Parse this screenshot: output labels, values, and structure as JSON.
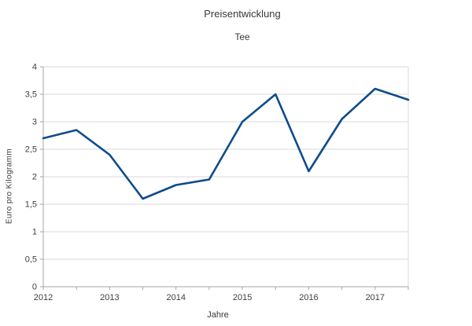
{
  "chart_data": {
    "type": "line",
    "title": "Preisentwicklung",
    "subtitle": "Tee",
    "xlabel": "Jahre",
    "ylabel": "Euro pro Kilogramm",
    "series": [
      {
        "name": "Tee",
        "x": [
          2012,
          2012.5,
          2013,
          2013.5,
          2014,
          2014.5,
          2015,
          2015.5,
          2016,
          2016.5,
          2017,
          2017.5
        ],
        "values": [
          2.7,
          2.85,
          2.4,
          1.6,
          1.85,
          1.95,
          3.0,
          3.5,
          2.1,
          3.05,
          3.6,
          3.4
        ]
      }
    ],
    "xlim": [
      2012,
      2017.5
    ],
    "ylim": [
      0,
      4
    ],
    "y_tick_step": 0.5,
    "x_tick_step": 0.5,
    "x_label_step": 1,
    "y_tick_labels": [
      "0",
      "0,5",
      "1",
      "1,5",
      "2",
      "2,5",
      "3",
      "3,5",
      "4"
    ],
    "x_tick_labels": [
      "2012",
      "2013",
      "2014",
      "2015",
      "2016",
      "2017"
    ],
    "grid": true,
    "legend": "none",
    "colors": {
      "line": "#0f4c8a",
      "grid": "#d9d9d9",
      "axis": "#a6a6a6",
      "text": "#404040"
    }
  }
}
